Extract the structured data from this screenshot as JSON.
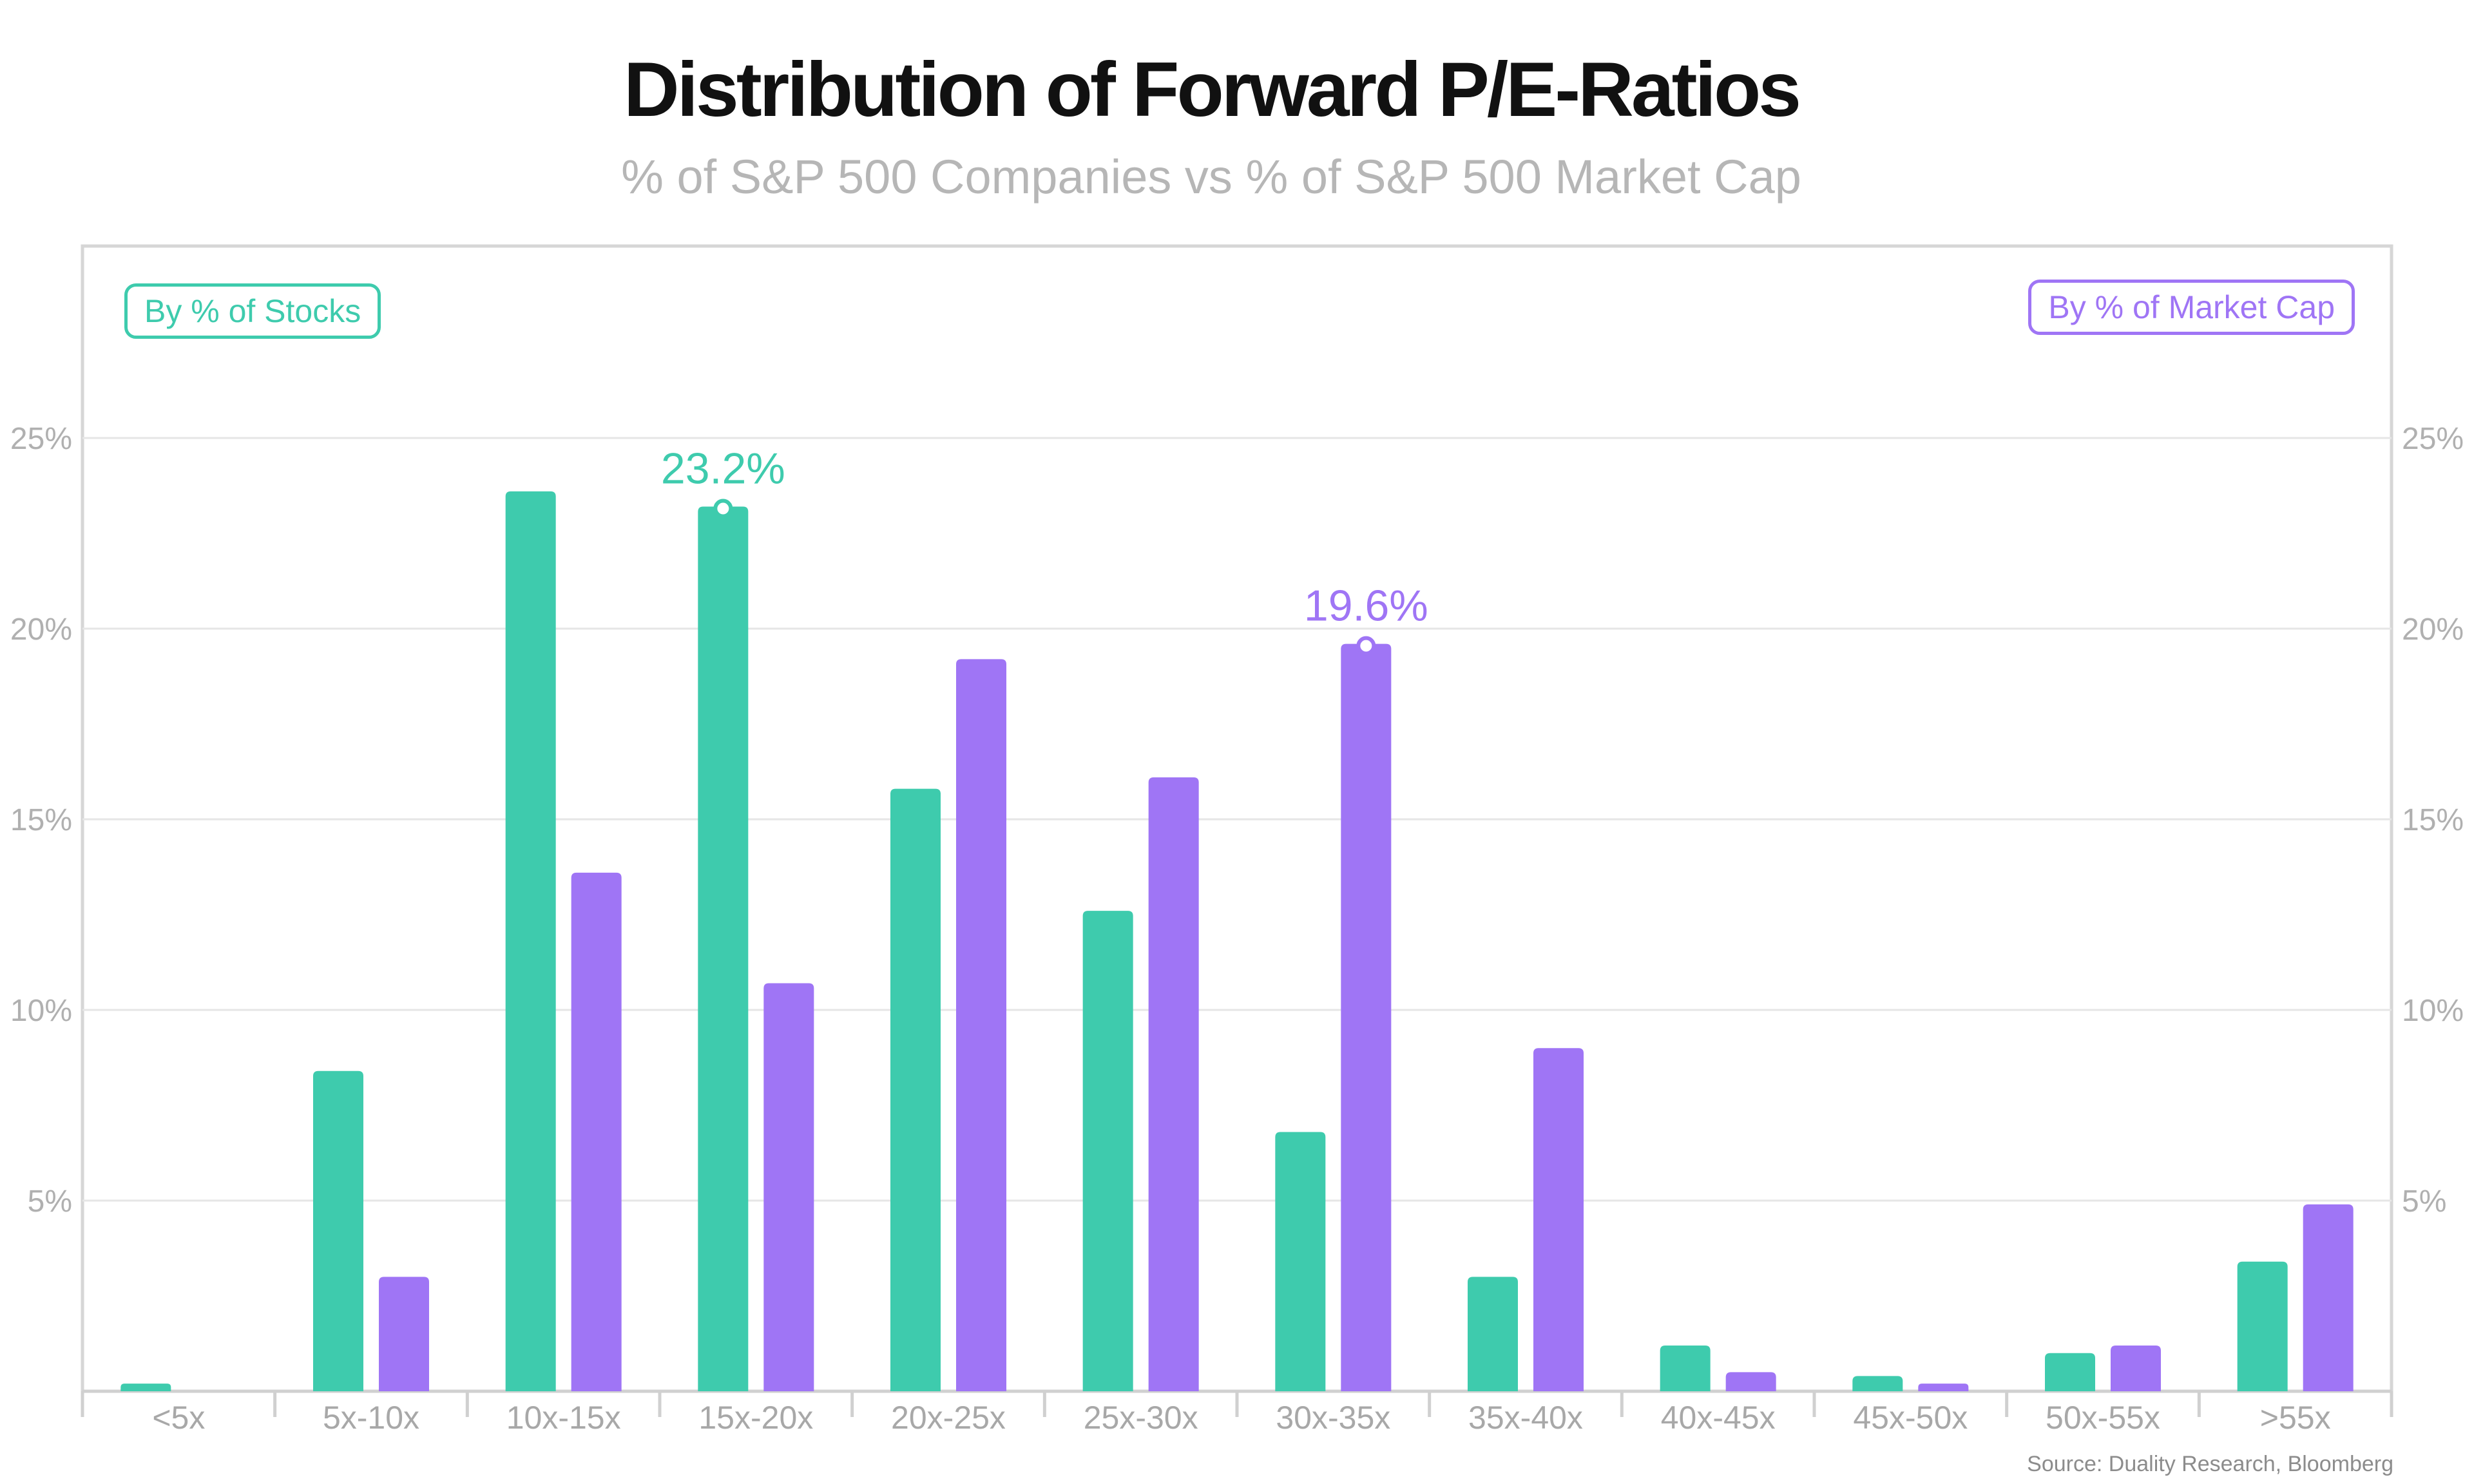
{
  "title": "Distribution of Forward P/E-Ratios",
  "subtitle": "% of S&P 500 Companies vs % of S&P 500 Market Cap",
  "legend": {
    "stocks": "By % of Stocks",
    "market_cap": "By % of Market Cap"
  },
  "source": "Source: Duality Research, Bloomberg",
  "colors": {
    "stocks": "#3ecbad",
    "market_cap": "#9f75f5",
    "grid": "#e6e6e6",
    "axis_text": "#b0b0b0"
  },
  "chart_data": {
    "type": "bar",
    "categories": [
      "<5x",
      "5x-10x",
      "10x-15x",
      "15x-20x",
      "20x-25x",
      "25x-30x",
      "30x-35x",
      "35x-40x",
      "40x-45x",
      "45x-50x",
      "50x-55x",
      ">55x"
    ],
    "series": [
      {
        "name": "By % of Stocks",
        "values": [
          0.2,
          8.4,
          23.6,
          23.2,
          15.8,
          12.6,
          6.8,
          3.0,
          1.2,
          0.4,
          1.0,
          3.4
        ]
      },
      {
        "name": "By % of Market Cap",
        "values": [
          0.0,
          3.0,
          13.6,
          10.7,
          19.2,
          16.1,
          19.6,
          9.0,
          0.5,
          0.2,
          1.2,
          4.9
        ]
      }
    ],
    "yticks": [
      "5%",
      "10%",
      "15%",
      "20%",
      "25%"
    ],
    "ylim": [
      0,
      30
    ],
    "grid": true,
    "legend_placement": "top-left and top-right",
    "annotations": [
      {
        "series": 0,
        "category": "15x-20x",
        "text": "23.2%"
      },
      {
        "series": 1,
        "category": "30x-35x",
        "text": "19.6%"
      }
    ]
  }
}
